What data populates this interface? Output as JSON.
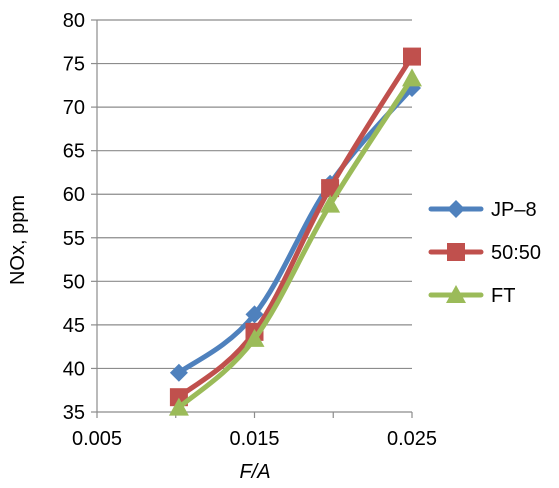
{
  "chart_data": {
    "type": "line",
    "xlabel": "F/A",
    "ylabel": "NOx, ppm",
    "xlim": [
      0.005,
      0.025
    ],
    "ylim": [
      35,
      80
    ],
    "xticks": [
      "0.005",
      "0.015",
      "0.025"
    ],
    "yticks": [
      "35",
      "40",
      "45",
      "50",
      "55",
      "60",
      "65",
      "70",
      "75",
      "80"
    ],
    "grid": "horizontal",
    "legend_position": "right",
    "x": [
      0.0102,
      0.015,
      0.0198,
      0.025
    ],
    "series": [
      {
        "name": "JP–8",
        "values": [
          39.5,
          46.2,
          61.2,
          72.2
        ],
        "color": "#4f81bd",
        "marker": "diamond"
      },
      {
        "name": "50:50",
        "values": [
          36.7,
          44.2,
          60.7,
          75.8
        ],
        "color": "#c0504d",
        "marker": "square"
      },
      {
        "name": "FT",
        "values": [
          35.5,
          43.4,
          58.8,
          73.3
        ],
        "color": "#9bbb59",
        "marker": "triangle"
      }
    ]
  }
}
